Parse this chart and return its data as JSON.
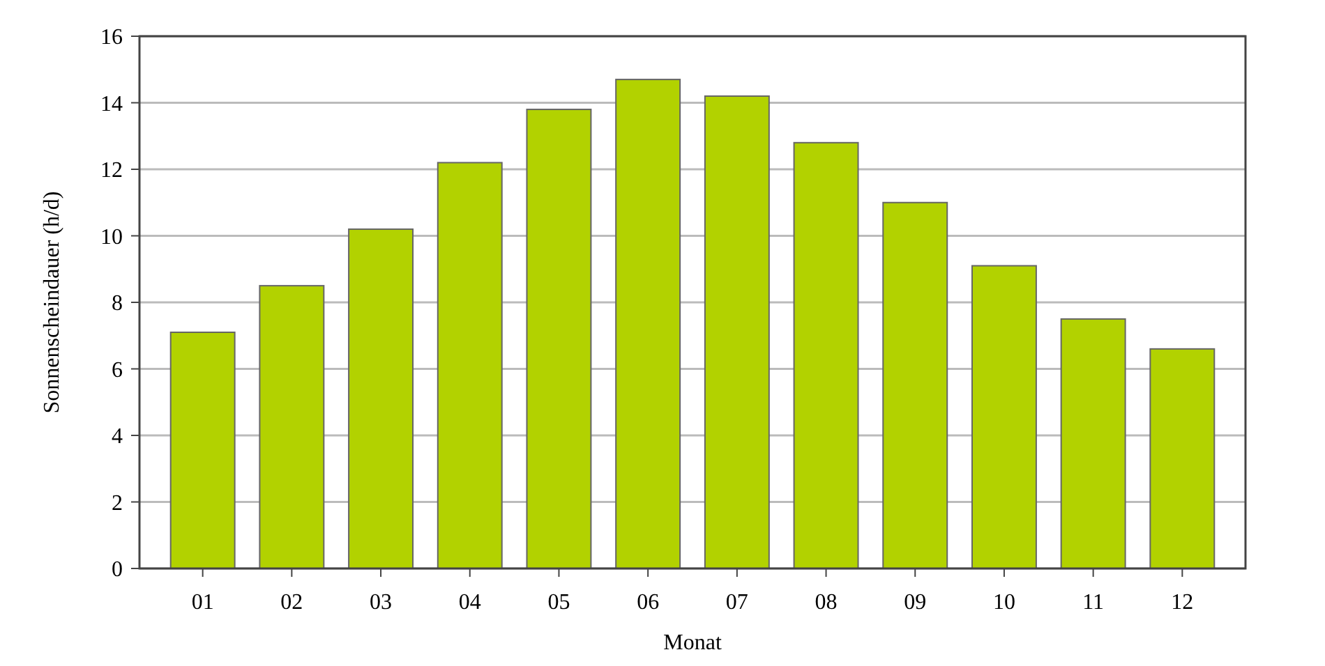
{
  "chart_data": {
    "type": "bar",
    "xlabel": "Monat",
    "ylabel": "Sonnenscheindauer (h/d)",
    "categories": [
      "01",
      "02",
      "03",
      "04",
      "05",
      "06",
      "07",
      "08",
      "09",
      "10",
      "11",
      "12"
    ],
    "values": [
      7.1,
      8.5,
      10.2,
      12.2,
      13.8,
      14.7,
      14.2,
      12.8,
      11.0,
      9.1,
      7.5,
      6.6
    ],
    "color": "#b2d200",
    "ylim": [
      0,
      16
    ],
    "yticks": [
      0,
      2,
      4,
      6,
      8,
      10,
      12,
      14,
      16
    ],
    "grid": "y"
  }
}
